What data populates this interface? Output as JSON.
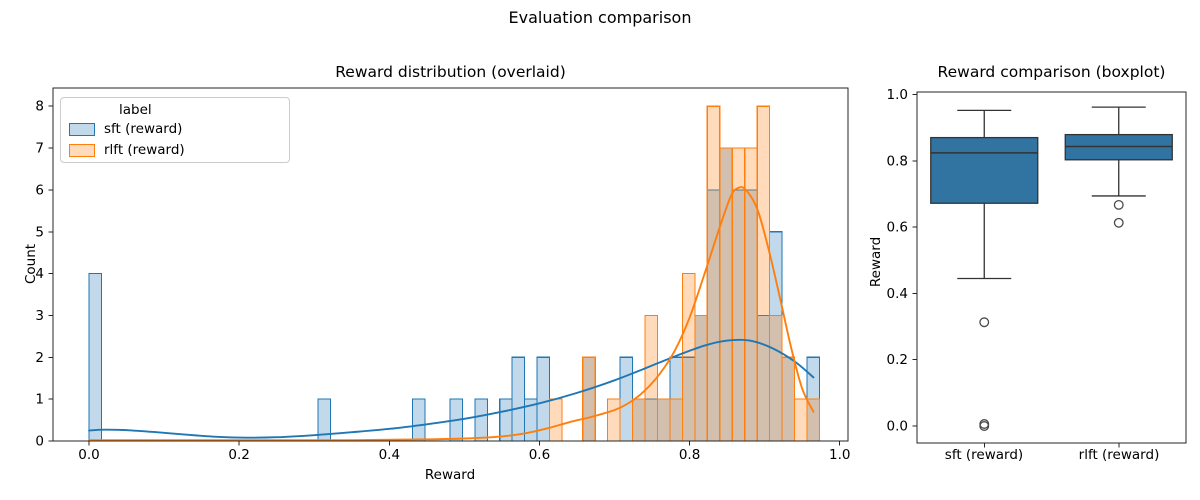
{
  "figure": {
    "suptitle": "Evaluation comparison",
    "background": "#ffffff"
  },
  "chart_data": [
    {
      "type": "histogram",
      "title": "Reward distribution (overlaid)",
      "xlabel": "Reward",
      "ylabel": "Count",
      "xlim": [
        -0.048,
        1.011
      ],
      "ylim": [
        0,
        8.44
      ],
      "grid": false,
      "bin_width": 0.0166,
      "xticks": [
        0.0,
        0.2,
        0.4,
        0.6,
        0.8,
        1.0
      ],
      "xtick_labels": [
        "0.0",
        "0.2",
        "0.4",
        "0.6",
        "0.8",
        "1.0"
      ],
      "yticks": [
        0,
        1,
        2,
        3,
        4,
        5,
        6,
        7,
        8
      ],
      "ytick_labels": [
        "0",
        "1",
        "2",
        "3",
        "4",
        "5",
        "6",
        "7",
        "8"
      ],
      "legend": {
        "title": "label",
        "position": "upper left",
        "entries": [
          {
            "label": "sft (reward)",
            "edge": "#1f77b4",
            "fill": "rgba(31,119,180,0.28)"
          },
          {
            "label": "rlft (reward)",
            "edge": "#ff7f0e",
            "fill": "rgba(255,127,14,0.28)"
          }
        ]
      },
      "series": [
        {
          "name": "sft (reward)",
          "edge": "#1f77b4",
          "fill": "rgba(31,119,180,0.28)",
          "bars": [
            [
              0.0,
              4
            ],
            [
              0.305,
              1
            ],
            [
              0.431,
              1
            ],
            [
              0.481,
              1
            ],
            [
              0.514,
              1
            ],
            [
              0.547,
              1
            ],
            [
              0.5636,
              2
            ],
            [
              0.5802,
              1
            ],
            [
              0.5968,
              2
            ],
            [
              0.6576,
              2
            ],
            [
              0.7074,
              2
            ],
            [
              0.724,
              1
            ],
            [
              0.7406,
              1
            ],
            [
              0.7572,
              1
            ],
            [
              0.7738,
              2
            ],
            [
              0.7904,
              2
            ],
            [
              0.807,
              3
            ],
            [
              0.8236,
              6
            ],
            [
              0.8402,
              7
            ],
            [
              0.8568,
              6
            ],
            [
              0.8734,
              6
            ],
            [
              0.89,
              3
            ],
            [
              0.9066,
              5
            ],
            [
              0.9232,
              2
            ],
            [
              0.9564,
              2
            ]
          ],
          "kde": [
            [
              0.0,
              0.25
            ],
            [
              0.02,
              0.27
            ],
            [
              0.05,
              0.26
            ],
            [
              0.09,
              0.21
            ],
            [
              0.13,
              0.15
            ],
            [
              0.17,
              0.1
            ],
            [
              0.21,
              0.08
            ],
            [
              0.25,
              0.09
            ],
            [
              0.3,
              0.14
            ],
            [
              0.35,
              0.21
            ],
            [
              0.4,
              0.29
            ],
            [
              0.45,
              0.4
            ],
            [
              0.5,
              0.53
            ],
            [
              0.55,
              0.7
            ],
            [
              0.6,
              0.9
            ],
            [
              0.65,
              1.15
            ],
            [
              0.7,
              1.45
            ],
            [
              0.74,
              1.73
            ],
            [
              0.78,
              2.02
            ],
            [
              0.82,
              2.28
            ],
            [
              0.85,
              2.4
            ],
            [
              0.88,
              2.4
            ],
            [
              0.91,
              2.22
            ],
            [
              0.94,
              1.9
            ],
            [
              0.965,
              1.52
            ]
          ]
        },
        {
          "name": "rlft (reward)",
          "edge": "#ff7f0e",
          "fill": "rgba(255,127,14,0.28)",
          "bars": [
            [
              0.6134,
              1
            ],
            [
              0.6576,
              2
            ],
            [
              0.6908,
              1
            ],
            [
              0.724,
              1
            ],
            [
              0.7406,
              3
            ],
            [
              0.7572,
              1
            ],
            [
              0.7738,
              1
            ],
            [
              0.7904,
              4
            ],
            [
              0.807,
              3
            ],
            [
              0.8236,
              8
            ],
            [
              0.8402,
              7
            ],
            [
              0.8568,
              7
            ],
            [
              0.8734,
              7
            ],
            [
              0.89,
              8
            ],
            [
              0.9066,
              3
            ],
            [
              0.9232,
              2
            ],
            [
              0.9398,
              1
            ],
            [
              0.9564,
              1
            ]
          ],
          "kde": [
            [
              0.0,
              0.02
            ],
            [
              0.2,
              0.02
            ],
            [
              0.35,
              0.02
            ],
            [
              0.45,
              0.04
            ],
            [
              0.5,
              0.06
            ],
            [
              0.55,
              0.11
            ],
            [
              0.58,
              0.18
            ],
            [
              0.61,
              0.3
            ],
            [
              0.64,
              0.45
            ],
            [
              0.67,
              0.58
            ],
            [
              0.7,
              0.74
            ],
            [
              0.72,
              0.92
            ],
            [
              0.74,
              1.2
            ],
            [
              0.76,
              1.6
            ],
            [
              0.78,
              2.15
            ],
            [
              0.8,
              2.95
            ],
            [
              0.82,
              4.0
            ],
            [
              0.84,
              5.1
            ],
            [
              0.855,
              5.85
            ],
            [
              0.865,
              6.05
            ],
            [
              0.875,
              6.0
            ],
            [
              0.89,
              5.55
            ],
            [
              0.905,
              4.6
            ],
            [
              0.92,
              3.45
            ],
            [
              0.935,
              2.25
            ],
            [
              0.95,
              1.25
            ],
            [
              0.965,
              0.7
            ]
          ]
        }
      ]
    },
    {
      "type": "boxplot",
      "title": "Reward comparison (boxplot)",
      "ylabel": "Reward",
      "ylim": [
        -0.051,
        1.007
      ],
      "yticks": [
        0.0,
        0.2,
        0.4,
        0.6,
        0.8,
        1.0
      ],
      "ytick_labels": [
        "0.0",
        "0.2",
        "0.4",
        "0.6",
        "0.8",
        "1.0"
      ],
      "categories": [
        "sft (reward)",
        "rlft (reward)"
      ],
      "box_fill": "#3274a1",
      "line_color": "#333333",
      "boxes": [
        {
          "label": "sft (reward)",
          "whisker_low": 0.445,
          "q1": 0.672,
          "median": 0.824,
          "q3": 0.87,
          "whisker_high": 0.952,
          "outliers": [
            0.313,
            0.006,
            0.0
          ]
        },
        {
          "label": "rlft (reward)",
          "whisker_low": 0.694,
          "q1": 0.803,
          "median": 0.843,
          "q3": 0.879,
          "whisker_high": 0.962,
          "outliers": [
            0.667,
            0.613
          ]
        }
      ]
    }
  ]
}
